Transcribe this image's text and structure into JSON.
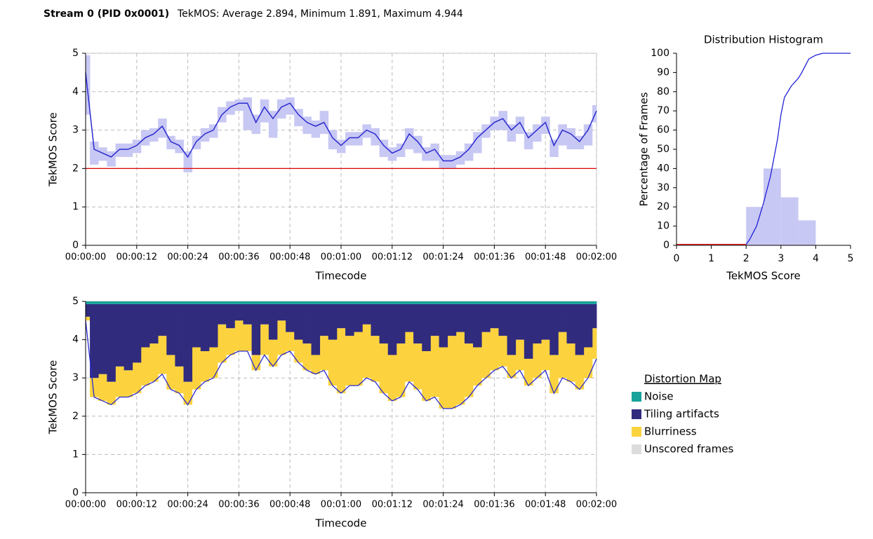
{
  "header": {
    "stream": "Stream 0 (PID 0x0001)",
    "title": "TekMOS: Average 2.894, Minimum 1.891, Maximum 4.944"
  },
  "chart_data": [
    {
      "type": "line",
      "xlabel": "Timecode",
      "ylabel": "TekMOS Score",
      "x": [
        0,
        2,
        4,
        6,
        8,
        10,
        12,
        14,
        16,
        18,
        20,
        22,
        24,
        26,
        28,
        30,
        32,
        34,
        36,
        38,
        40,
        42,
        44,
        46,
        48,
        50,
        52,
        54,
        56,
        58,
        60,
        62,
        64,
        66,
        68,
        70,
        72,
        74,
        76,
        78,
        80,
        82,
        84,
        86,
        88,
        90,
        92,
        94,
        96,
        98,
        100,
        102,
        104,
        106,
        108,
        110,
        112,
        114,
        116,
        118,
        120
      ],
      "series": [
        {
          "color": "#2b2bd0",
          "band_color": "#c8c8f4",
          "values": [
            4.5,
            2.5,
            2.4,
            2.3,
            2.5,
            2.5,
            2.6,
            2.8,
            2.9,
            3.1,
            2.7,
            2.6,
            2.3,
            2.7,
            2.9,
            3.0,
            3.4,
            3.6,
            3.7,
            3.7,
            3.2,
            3.6,
            3.3,
            3.6,
            3.7,
            3.4,
            3.2,
            3.1,
            3.2,
            2.8,
            2.6,
            2.8,
            2.8,
            3.0,
            2.9,
            2.6,
            2.4,
            2.5,
            2.9,
            2.7,
            2.4,
            2.5,
            2.2,
            2.2,
            2.3,
            2.5,
            2.8,
            3.0,
            3.2,
            3.3,
            3.0,
            3.2,
            2.8,
            3.0,
            3.2,
            2.6,
            3.0,
            2.9,
            2.7,
            3.0,
            3.5
          ],
          "low": [
            3.4,
            2.1,
            2.2,
            2.05,
            2.3,
            2.3,
            2.4,
            2.6,
            2.7,
            2.8,
            2.5,
            2.4,
            1.9,
            2.5,
            2.7,
            2.8,
            3.2,
            3.4,
            3.5,
            3.0,
            2.9,
            3.2,
            2.8,
            3.3,
            3.4,
            3.1,
            2.9,
            2.8,
            2.9,
            2.5,
            2.4,
            2.6,
            2.6,
            2.8,
            2.6,
            2.3,
            2.2,
            2.3,
            2.5,
            2.4,
            2.2,
            2.2,
            2.0,
            2.0,
            2.1,
            2.2,
            2.4,
            2.8,
            3.0,
            3.0,
            2.7,
            2.9,
            2.5,
            2.7,
            2.9,
            2.3,
            2.6,
            2.5,
            2.5,
            2.6,
            3.2
          ],
          "high": [
            4.95,
            2.7,
            2.55,
            2.45,
            2.65,
            2.65,
            2.75,
            3.0,
            3.05,
            3.3,
            2.85,
            2.75,
            2.45,
            2.85,
            3.05,
            3.15,
            3.6,
            3.75,
            3.8,
            3.85,
            3.4,
            3.8,
            3.5,
            3.8,
            3.85,
            3.55,
            3.35,
            3.25,
            3.5,
            3.0,
            2.75,
            2.95,
            2.95,
            3.15,
            3.05,
            2.75,
            2.55,
            2.65,
            3.05,
            2.85,
            2.55,
            2.65,
            2.35,
            2.35,
            2.45,
            2.65,
            2.95,
            3.15,
            3.35,
            3.5,
            3.15,
            3.35,
            2.95,
            3.15,
            3.35,
            2.75,
            3.15,
            3.05,
            2.85,
            3.15,
            3.65
          ]
        }
      ],
      "threshold": 2,
      "threshold_color": "#e00000",
      "xlim": [
        0,
        120
      ],
      "ylim": [
        0,
        5
      ],
      "yticks": [
        0,
        1,
        2,
        3,
        4,
        5
      ],
      "xticks": [
        {
          "value": 0,
          "label": "00:00:00"
        },
        {
          "value": 12,
          "label": "00:00:12"
        },
        {
          "value": 24,
          "label": "00:00:24"
        },
        {
          "value": 36,
          "label": "00:00:36"
        },
        {
          "value": 48,
          "label": "00:00:48"
        },
        {
          "value": 60,
          "label": "00:01:00"
        },
        {
          "value": 72,
          "label": "00:01:12"
        },
        {
          "value": 84,
          "label": "00:01:24"
        },
        {
          "value": 96,
          "label": "00:01:36"
        },
        {
          "value": 108,
          "label": "00:01:48"
        },
        {
          "value": 120,
          "label": "00:02:00"
        }
      ],
      "grid": true
    },
    {
      "type": "histogram",
      "title": "Distribution Histogram",
      "xlabel": "TekMOS Score",
      "ylabel": "Percentage of Frames",
      "bins": [
        0,
        0.5,
        1,
        1.5,
        2,
        2.5,
        3,
        3.5,
        4,
        4.5,
        5
      ],
      "values": [
        0,
        0,
        0,
        0,
        20,
        40,
        25,
        13,
        0,
        0
      ],
      "color": "#c8c8f4",
      "cumulative": {
        "x": [
          0,
          2,
          2.1,
          2.3,
          2.5,
          2.7,
          2.9,
          3.0,
          3.1,
          3.3,
          3.5,
          3.6,
          3.8,
          4.0,
          4.2,
          5
        ],
        "values": [
          0.5,
          0.5,
          3,
          10,
          22,
          36,
          55,
          68,
          77,
          83,
          87,
          90,
          97,
          99,
          100,
          100
        ],
        "color": "#2020d8",
        "below_color": "#e00000",
        "threshold_x": 2
      },
      "xlim": [
        0,
        5
      ],
      "xticks": [
        0,
        1,
        2,
        3,
        4,
        5
      ],
      "ylim": [
        0,
        100
      ],
      "yticks": [
        0,
        10,
        20,
        30,
        40,
        50,
        60,
        70,
        80,
        90,
        100
      ],
      "grid": false
    },
    {
      "type": "area",
      "xlabel": "Timecode",
      "ylabel": "TekMOS Score",
      "legend": "right",
      "legend_title": "Distortion Map",
      "x": [
        0,
        2,
        4,
        6,
        8,
        10,
        12,
        14,
        16,
        18,
        20,
        22,
        24,
        26,
        28,
        30,
        32,
        34,
        36,
        38,
        40,
        42,
        44,
        46,
        48,
        50,
        52,
        54,
        56,
        58,
        60,
        62,
        64,
        66,
        68,
        70,
        72,
        74,
        76,
        78,
        80,
        82,
        84,
        86,
        88,
        90,
        92,
        94,
        96,
        98,
        100,
        102,
        104,
        106,
        108,
        110,
        112,
        114,
        116,
        118,
        120
      ],
      "series": [
        {
          "name": "Noise",
          "color": "#17a39b",
          "values": [
            0.07,
            0.07,
            0.07,
            0.07,
            0.07,
            0.07,
            0.07,
            0.07,
            0.07,
            0.07,
            0.07,
            0.07,
            0.07,
            0.07,
            0.07,
            0.07,
            0.07,
            0.07,
            0.07,
            0.07,
            0.07,
            0.07,
            0.07,
            0.07,
            0.07,
            0.07,
            0.07,
            0.07,
            0.07,
            0.07,
            0.07,
            0.07,
            0.07,
            0.07,
            0.07,
            0.07,
            0.07,
            0.07,
            0.07,
            0.07,
            0.07,
            0.07,
            0.07,
            0.07,
            0.07,
            0.07,
            0.07,
            0.07,
            0.07,
            0.07,
            0.07,
            0.07,
            0.07,
            0.07,
            0.07,
            0.07,
            0.07,
            0.07,
            0.07,
            0.07,
            0.07
          ]
        },
        {
          "name": "Tiling artifacts",
          "color": "#302b7d",
          "values": [
            0.33,
            1.93,
            1.83,
            2.03,
            1.63,
            1.73,
            1.53,
            1.13,
            1.03,
            0.83,
            1.33,
            1.63,
            2.03,
            1.13,
            1.23,
            1.13,
            0.53,
            0.63,
            0.43,
            0.53,
            1.33,
            0.53,
            0.93,
            0.43,
            0.73,
            0.93,
            1.03,
            1.33,
            0.83,
            0.93,
            0.63,
            0.83,
            0.73,
            0.53,
            0.83,
            1.03,
            1.33,
            1.03,
            0.73,
            1.03,
            1.23,
            0.83,
            1.13,
            0.83,
            0.73,
            1.03,
            1.13,
            0.73,
            0.63,
            0.83,
            1.33,
            0.93,
            1.43,
            1.03,
            0.93,
            1.33,
            0.73,
            1.03,
            1.33,
            1.13,
            0.63
          ]
        },
        {
          "name": "Blurriness",
          "color": "#fcd33f",
          "values": [
            0.1,
            0.5,
            0.7,
            0.6,
            0.8,
            0.7,
            0.8,
            1.0,
            1.0,
            1.0,
            0.9,
            0.7,
            0.6,
            1.1,
            0.8,
            0.8,
            1.0,
            0.7,
            0.8,
            0.7,
            0.4,
            0.8,
            0.7,
            0.9,
            0.5,
            0.6,
            0.7,
            0.5,
            0.9,
            1.2,
            1.7,
            1.3,
            1.4,
            1.4,
            1.2,
            1.3,
            1.2,
            1.4,
            1.3,
            1.2,
            1.3,
            1.6,
            1.6,
            1.9,
            1.9,
            1.4,
            1.0,
            1.2,
            1.1,
            0.8,
            0.6,
            0.8,
            0.7,
            0.9,
            0.8,
            1.0,
            1.2,
            1.0,
            0.9,
            0.8,
            0.8
          ]
        },
        {
          "name": "Unscored frames",
          "color": "#dcdcdc"
        }
      ],
      "xlim": [
        0,
        120
      ],
      "ylim": [
        0,
        5
      ],
      "yticks": [
        0,
        1,
        2,
        3,
        4,
        5
      ],
      "xticks": [
        {
          "value": 0,
          "label": "00:00:00"
        },
        {
          "value": 12,
          "label": "00:00:12"
        },
        {
          "value": 24,
          "label": "00:00:24"
        },
        {
          "value": 36,
          "label": "00:00:36"
        },
        {
          "value": 48,
          "label": "00:00:48"
        },
        {
          "value": 60,
          "label": "00:01:00"
        },
        {
          "value": 72,
          "label": "00:01:12"
        },
        {
          "value": 84,
          "label": "00:01:24"
        },
        {
          "value": 96,
          "label": "00:01:36"
        },
        {
          "value": 108,
          "label": "00:01:48"
        },
        {
          "value": 120,
          "label": "00:02:00"
        }
      ],
      "grid": true
    }
  ]
}
